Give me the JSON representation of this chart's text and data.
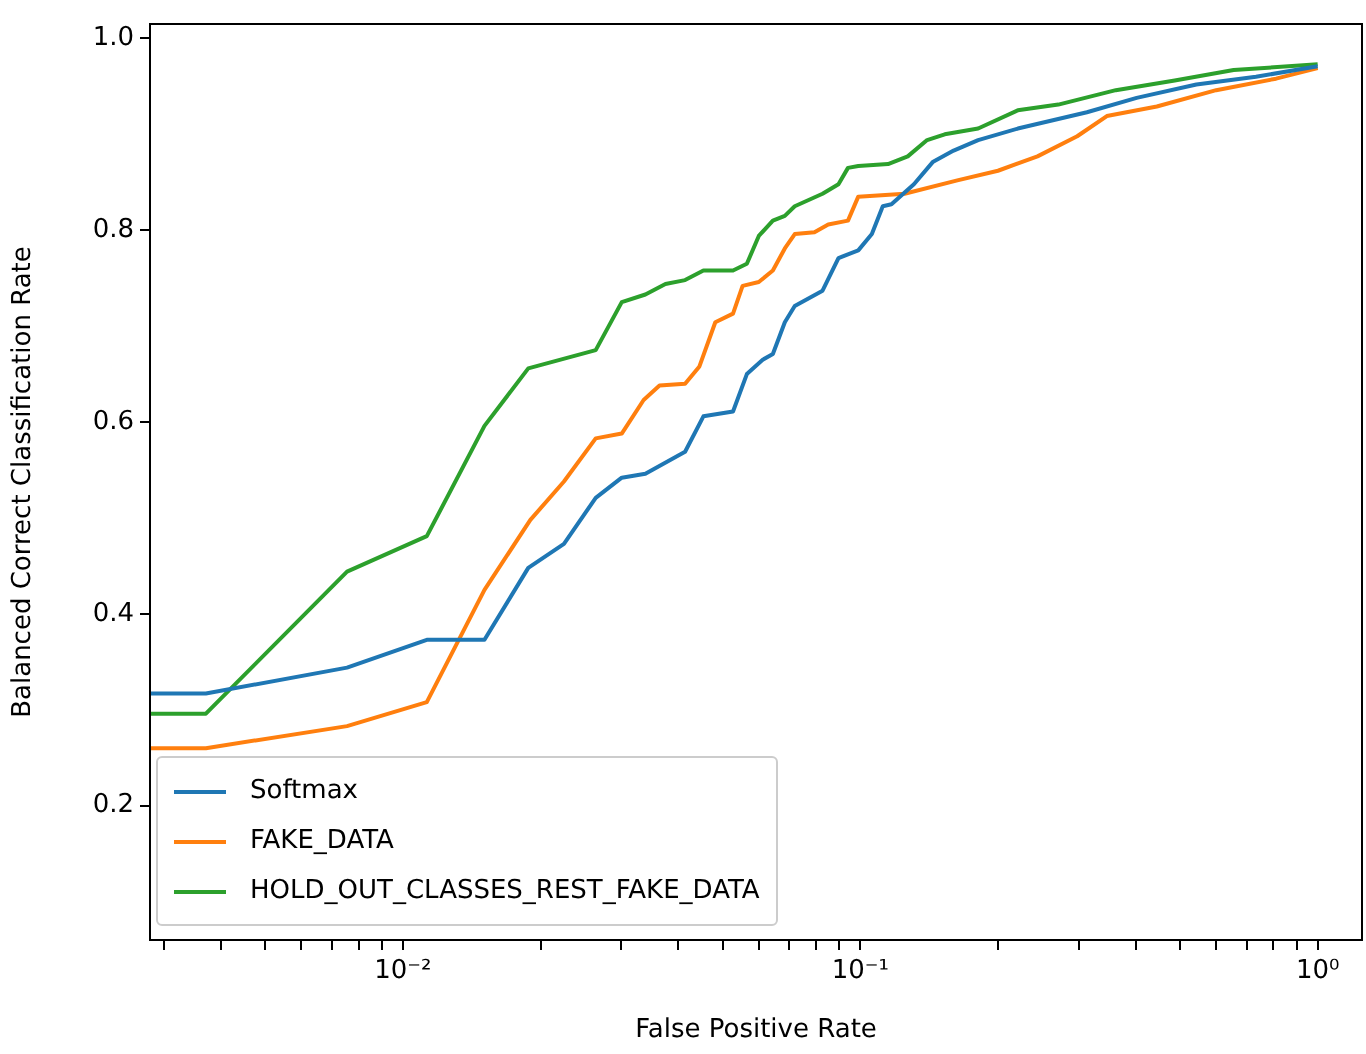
{
  "chart_data": {
    "type": "line",
    "xlabel": "False Positive Rate",
    "ylabel": "Balanced Correct Classification Rate",
    "log": "x",
    "legend": "bottom left",
    "marker": "none",
    "line_style": "solid",
    "xlim": [
      0.0028,
      1.25
    ],
    "ylim": [
      0.06,
      1.015
    ],
    "xticks": [
      {
        "value": 0.003,
        "label": null
      },
      {
        "value": 0.004,
        "label": null
      },
      {
        "value": 0.005,
        "label": null
      },
      {
        "value": 0.006,
        "label": null
      },
      {
        "value": 0.007,
        "label": null
      },
      {
        "value": 0.008,
        "label": null
      },
      {
        "value": 0.009,
        "label": null
      },
      {
        "value": 0.01,
        "label": "10⁻²"
      },
      {
        "value": 0.02,
        "label": null
      },
      {
        "value": 0.03,
        "label": null
      },
      {
        "value": 0.04,
        "label": null
      },
      {
        "value": 0.05,
        "label": null
      },
      {
        "value": 0.06,
        "label": null
      },
      {
        "value": 0.07,
        "label": null
      },
      {
        "value": 0.08,
        "label": null
      },
      {
        "value": 0.09,
        "label": null
      },
      {
        "value": 0.1,
        "label": "10⁻¹"
      },
      {
        "value": 0.2,
        "label": null
      },
      {
        "value": 0.3,
        "label": null
      },
      {
        "value": 0.4,
        "label": null
      },
      {
        "value": 0.5,
        "label": null
      },
      {
        "value": 0.6,
        "label": null
      },
      {
        "value": 0.7,
        "label": null
      },
      {
        "value": 0.8,
        "label": null
      },
      {
        "value": 0.9,
        "label": null
      },
      {
        "value": 1,
        "label": "10⁰"
      }
    ],
    "yticks": [
      0.2,
      0.4,
      0.6,
      0.8,
      {
        "value": 1,
        "label": "1.0"
      }
    ],
    "series": [
      {
        "name": "Softmax",
        "color": "#1f77b4",
        "x": [
          0.0028,
          0.00371,
          0.00755,
          0.01128,
          0.01508,
          0.0188,
          0.0225,
          0.0264,
          0.0301,
          0.0339,
          0.0414,
          0.0454,
          0.0527,
          0.0565,
          0.0612,
          0.0644,
          0.0684,
          0.0719,
          0.0827,
          0.0896,
          0.099,
          0.106,
          0.112,
          0.117,
          0.131,
          0.144,
          0.16,
          0.181,
          0.221,
          0.313,
          0.402,
          0.543,
          0.733,
          1.0
        ],
        "values": [
          0.317,
          0.317,
          0.344,
          0.373,
          0.373,
          0.448,
          0.473,
          0.521,
          0.542,
          0.546,
          0.569,
          0.606,
          0.611,
          0.65,
          0.665,
          0.671,
          0.704,
          0.721,
          0.737,
          0.771,
          0.779,
          0.796,
          0.825,
          0.827,
          0.848,
          0.871,
          0.883,
          0.894,
          0.906,
          0.923,
          0.938,
          0.952,
          0.96,
          0.971
        ]
      },
      {
        "name": "FAKE_DATA",
        "color": "#ff7f0e",
        "x": [
          0.0028,
          0.00371,
          0.00755,
          0.01128,
          0.01508,
          0.019,
          0.0225,
          0.0264,
          0.0301,
          0.0336,
          0.0364,
          0.0414,
          0.0445,
          0.0482,
          0.0527,
          0.0553,
          0.06,
          0.0644,
          0.0684,
          0.0719,
          0.0794,
          0.0851,
          0.094,
          0.099,
          0.125,
          0.163,
          0.2,
          0.244,
          0.298,
          0.346,
          0.445,
          0.6,
          0.811,
          1.0
        ],
        "values": [
          0.26,
          0.26,
          0.283,
          0.308,
          0.425,
          0.498,
          0.538,
          0.583,
          0.588,
          0.623,
          0.638,
          0.64,
          0.658,
          0.704,
          0.713,
          0.742,
          0.746,
          0.758,
          0.781,
          0.796,
          0.798,
          0.806,
          0.81,
          0.835,
          0.838,
          0.852,
          0.862,
          0.877,
          0.898,
          0.919,
          0.929,
          0.946,
          0.958,
          0.969
        ]
      },
      {
        "name": "HOLD_OUT_CLASSES_REST_FAKE_DATA",
        "color": "#2ca02c",
        "x": [
          0.0028,
          0.00371,
          0.00755,
          0.01128,
          0.01508,
          0.0188,
          0.0264,
          0.0301,
          0.0339,
          0.0375,
          0.0414,
          0.0454,
          0.0527,
          0.0565,
          0.06,
          0.0644,
          0.0684,
          0.0719,
          0.0827,
          0.0896,
          0.094,
          0.099,
          0.115,
          0.127,
          0.14,
          0.153,
          0.181,
          0.221,
          0.271,
          0.362,
          0.487,
          0.655,
          1.0
        ],
        "values": [
          0.296,
          0.296,
          0.444,
          0.481,
          0.596,
          0.656,
          0.675,
          0.725,
          0.733,
          0.744,
          0.748,
          0.758,
          0.758,
          0.765,
          0.794,
          0.81,
          0.815,
          0.825,
          0.838,
          0.848,
          0.865,
          0.867,
          0.869,
          0.877,
          0.894,
          0.9,
          0.906,
          0.925,
          0.931,
          0.946,
          0.956,
          0.967,
          0.973
        ]
      }
    ]
  }
}
